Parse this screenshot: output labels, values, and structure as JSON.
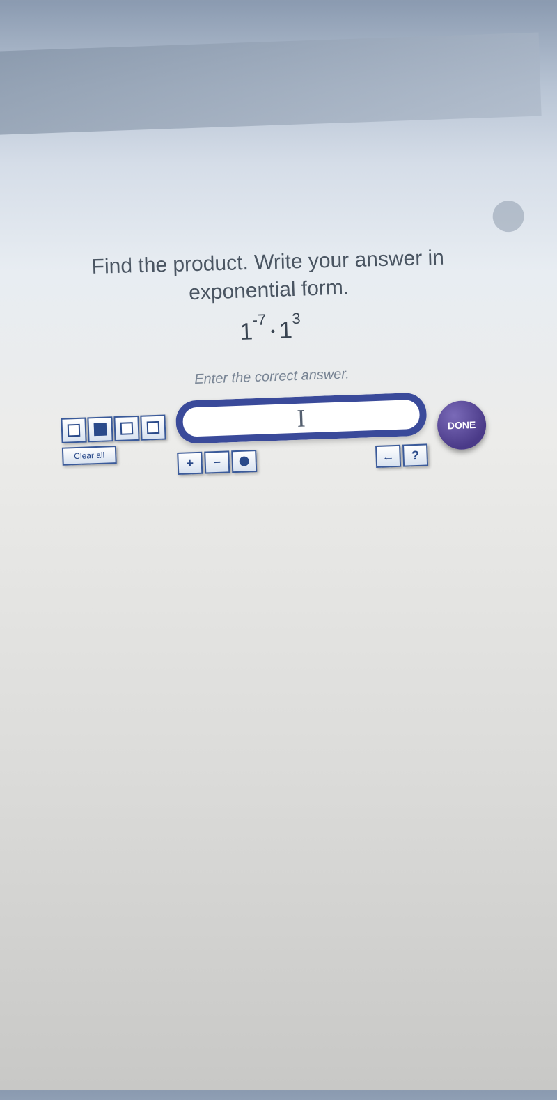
{
  "question": {
    "line1": "Find the product. Write your answer in",
    "line2": "exponential form.",
    "base1": "1",
    "exp1": "-7",
    "base2": "1",
    "exp2": "3"
  },
  "sublabel": "Enter the correct answer.",
  "tools": {
    "clear": "Clear all"
  },
  "buttons": {
    "plus": "+",
    "minus": "−",
    "leftarrow": "←",
    "question": "?",
    "done": "DONE"
  },
  "input": {
    "value": ""
  },
  "colors": {
    "button_border": "#3a5a9a",
    "button_text": "#2a4a8a",
    "done_bg": "#4a3a88"
  }
}
